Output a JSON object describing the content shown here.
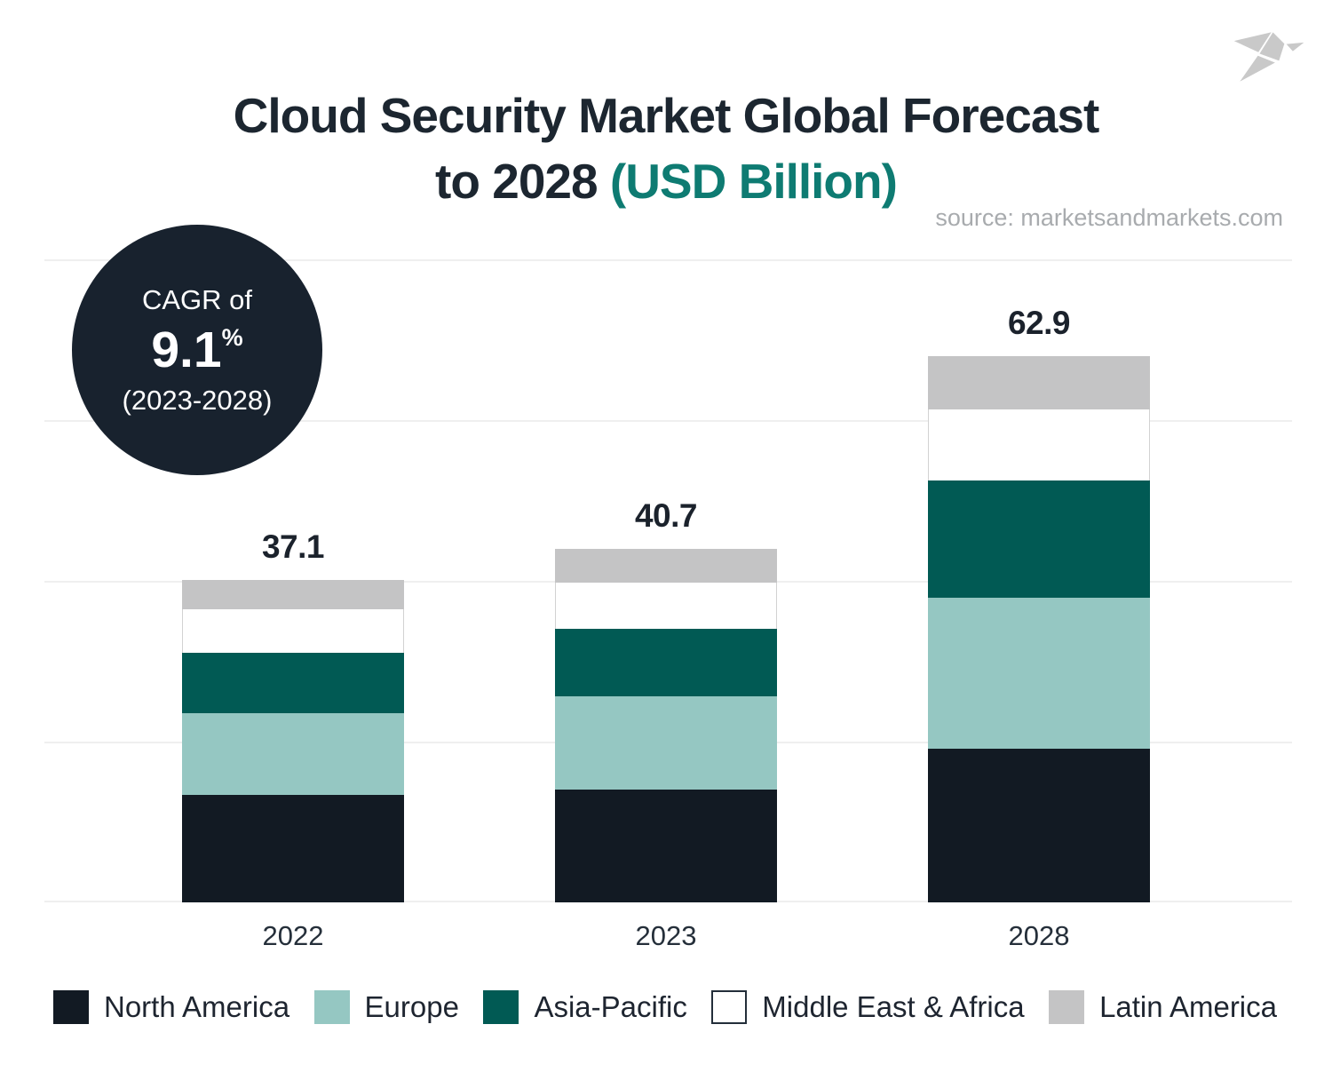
{
  "title": {
    "line1": "Cloud Security Market Global Forecast",
    "line2_dark": "to 2028",
    "line2_accent": "(USD Billion)"
  },
  "source_credit": "source: marketsandmarkets.com",
  "badge": {
    "label": "CAGR of",
    "value": "9.1",
    "unit": "%",
    "period": "(2023-2028)"
  },
  "logo_icon": "origami-bird-icon",
  "colors": {
    "title_navy": "#1c2630",
    "accent_teal": "#0e7b72",
    "badge_bg": "#18222e",
    "gridline": "#efefef",
    "value_label": "#1b222c",
    "logo_gray": "#c9c9c9"
  },
  "chart_data": {
    "type": "bar",
    "subtype": "stacked-vertical",
    "title": "Cloud Security Market Global Forecast to 2028 (USD Billion)",
    "xlabel": "",
    "ylabel": "",
    "unit": "USD Billion",
    "categories": [
      "2022",
      "2023",
      "2028"
    ],
    "totals": [
      "37.1",
      "40.7",
      "62.9"
    ],
    "series": [
      {
        "name": "North America",
        "color": "#121a23",
        "values": [
          12.4,
          13.0,
          17.7
        ]
      },
      {
        "name": "Europe",
        "color": "#95c7c2",
        "values": [
          9.4,
          10.7,
          17.4
        ]
      },
      {
        "name": "Asia-Pacific",
        "color": "#015a54",
        "values": [
          6.9,
          7.8,
          13.5
        ]
      },
      {
        "name": "Middle East & Africa",
        "color": "#ffffff",
        "values": [
          5.0,
          5.3,
          8.2
        ]
      },
      {
        "name": "Latin America",
        "color": "#c4c4c5",
        "values": [
          3.4,
          3.9,
          6.1
        ]
      }
    ],
    "stack_order_bottom_to_top": [
      "North America",
      "Europe",
      "Asia-Pacific",
      "Middle East & Africa",
      "Latin America"
    ],
    "ylim": [
      0,
      74
    ],
    "grid": {
      "horizontal_lines": 5,
      "labels_shown": false
    },
    "legend_position": "bottom"
  }
}
